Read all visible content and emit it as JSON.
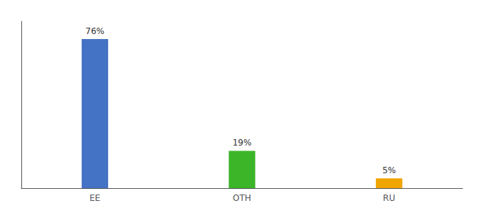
{
  "chart_data": {
    "type": "bar",
    "categories": [
      "EE",
      "OTH",
      "RU"
    ],
    "values": [
      76,
      19,
      5
    ],
    "value_labels": [
      "76%",
      "19%",
      "5%"
    ],
    "colors": [
      "#4472c4",
      "#3cb528",
      "#f0a500"
    ],
    "ylim": [
      0,
      85
    ],
    "data_labels": true,
    "tick_labels": "x",
    "grid": false
  }
}
